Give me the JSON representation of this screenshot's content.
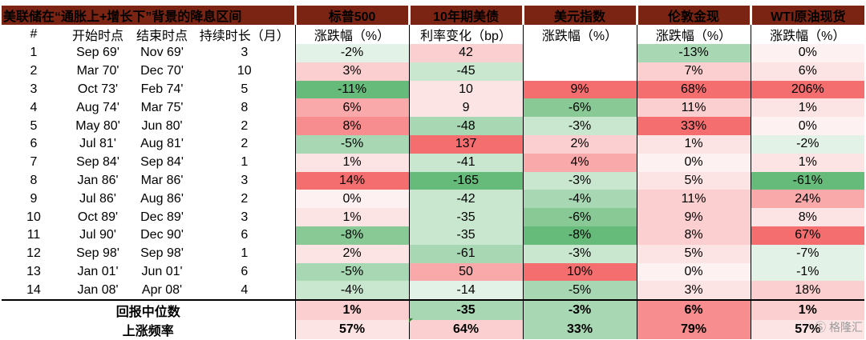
{
  "header": {
    "title": "美联储在“通胀上+增长下”背景的降息区间",
    "groups": [
      "标普500",
      "10年期美债",
      "美元指数",
      "伦敦金现",
      "WTI原油现货"
    ],
    "sub": [
      "#",
      "开始时点",
      "结束时点",
      "持续时长（月）",
      "涨跌幅（%）",
      "利率变化（bp）",
      "涨跌幅（%）",
      "涨跌幅（%）",
      "涨跌幅（%）"
    ]
  },
  "rows": [
    {
      "n": "1",
      "start": "Sep 69'",
      "end": "Nov 69'",
      "dur": "3",
      "spx": "-2%",
      "ust": "42",
      "dxy": "",
      "gold": "-13%",
      "wti": "0%"
    },
    {
      "n": "2",
      "start": "Mar 70'",
      "end": "Dec 70'",
      "dur": "10",
      "spx": "3%",
      "ust": "-45",
      "dxy": "",
      "gold": "7%",
      "wti": "6%"
    },
    {
      "n": "3",
      "start": "Oct 73'",
      "end": "Feb 74'",
      "dur": "5",
      "spx": "-11%",
      "ust": "10",
      "dxy": "9%",
      "gold": "68%",
      "wti": "206%"
    },
    {
      "n": "4",
      "start": "Aug 74'",
      "end": "Mar 75'",
      "dur": "8",
      "spx": "6%",
      "ust": "9",
      "dxy": "-6%",
      "gold": "11%",
      "wti": "1%"
    },
    {
      "n": "5",
      "start": "May 80'",
      "end": "Jun 80'",
      "dur": "2",
      "spx": "8%",
      "ust": "-48",
      "dxy": "-3%",
      "gold": "33%",
      "wti": "0%"
    },
    {
      "n": "6",
      "start": "Jul 81'",
      "end": "Aug 81'",
      "dur": "2",
      "spx": "-5%",
      "ust": "137",
      "dxy": "2%",
      "gold": "1%",
      "wti": "-2%"
    },
    {
      "n": "7",
      "start": "Sep 84'",
      "end": "Sep 84'",
      "dur": "1",
      "spx": "1%",
      "ust": "-41",
      "dxy": "4%",
      "gold": "0%",
      "wti": "1%"
    },
    {
      "n": "8",
      "start": "Jan 86'",
      "end": "Mar 86'",
      "dur": "3",
      "spx": "14%",
      "ust": "-165",
      "dxy": "-3%",
      "gold": "5%",
      "wti": "-61%"
    },
    {
      "n": "9",
      "start": "Jul 86'",
      "end": "Aug 86'",
      "dur": "2",
      "spx": "0%",
      "ust": "-42",
      "dxy": "-4%",
      "gold": "11%",
      "wti": "24%"
    },
    {
      "n": "10",
      "start": "Oct 89'",
      "end": "Dec 89'",
      "dur": "3",
      "spx": "1%",
      "ust": "-35",
      "dxy": "-6%",
      "gold": "9%",
      "wti": "8%"
    },
    {
      "n": "11",
      "start": "Jul 90'",
      "end": "Dec 90'",
      "dur": "6",
      "spx": "-8%",
      "ust": "-35",
      "dxy": "-8%",
      "gold": "8%",
      "wti": "67%"
    },
    {
      "n": "12",
      "start": "Sep 98'",
      "end": "Sep 98'",
      "dur": "1",
      "spx": "2%",
      "ust": "-61",
      "dxy": "-3%",
      "gold": "5%",
      "wti": "-7%"
    },
    {
      "n": "13",
      "start": "Jan 01'",
      "end": "Jun 01'",
      "dur": "6",
      "spx": "-5%",
      "ust": "50",
      "dxy": "10%",
      "gold": "0%",
      "wti": "-1%"
    },
    {
      "n": "14",
      "start": "Jan 08'",
      "end": "Apr 08'",
      "dur": "4",
      "spx": "-4%",
      "ust": "-14",
      "dxy": "-5%",
      "gold": "3%",
      "wti": "18%"
    }
  ],
  "summary": [
    {
      "label": "回报中位数",
      "spx": "1%",
      "ust": "-35",
      "dxy": "-3%",
      "gold": "6%",
      "wti": "1%"
    },
    {
      "label": "上涨频率",
      "spx": "57%",
      "ust": "64%",
      "dxy": "33%",
      "gold": "79%",
      "wti": "57%"
    }
  ],
  "colors": {
    "header_bg": "#7b2413",
    "header_text": "#ffffff",
    "positive_scale": [
      "#fce4e4",
      "#fbcfcf",
      "#f9a9aa",
      "#f78d8e",
      "#f46e6f"
    ],
    "negative_scale": [
      "#e3f2e6",
      "#c9e7cf",
      "#a8d8b3",
      "#88c996",
      "#66bb7b"
    ],
    "neutral": "#fdf1f1",
    "empty": "#ffffff"
  },
  "watermark": "格隆汇"
}
